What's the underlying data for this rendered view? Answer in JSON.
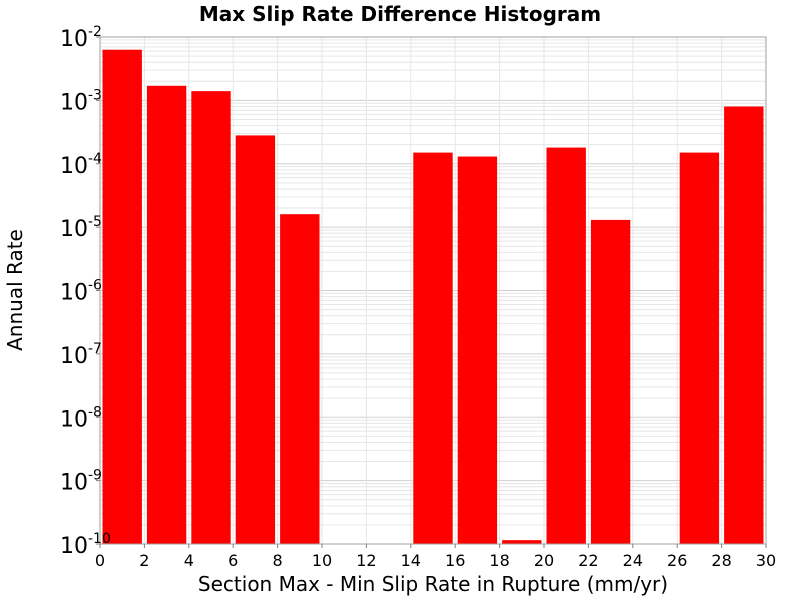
{
  "chart_data": {
    "type": "bar",
    "title": "Max Slip Rate Difference Histogram",
    "xlabel": "Section Max - Min Slip Rate in Rupture (mm/yr)",
    "ylabel": "Annual Rate",
    "xlim": [
      0,
      30
    ],
    "ylim": [
      1e-10,
      0.01
    ],
    "yscale": "log",
    "grid": true,
    "legend": "none",
    "bar_color": "#ff0000",
    "bin_width": 2,
    "x_ticks": [
      "0",
      "2",
      "4",
      "6",
      "8",
      "10",
      "12",
      "14",
      "16",
      "18",
      "20",
      "22",
      "24",
      "26",
      "28",
      "30"
    ],
    "y_ticks": [
      {
        "base": "10",
        "exp": "-2"
      },
      {
        "base": "10",
        "exp": "-3"
      },
      {
        "base": "10",
        "exp": "-4"
      },
      {
        "base": "10",
        "exp": "-5"
      },
      {
        "base": "10",
        "exp": "-6"
      },
      {
        "base": "10",
        "exp": "-7"
      },
      {
        "base": "10",
        "exp": "-8"
      },
      {
        "base": "10",
        "exp": "-9"
      },
      {
        "base": "10",
        "exp": "-10"
      }
    ],
    "bins": [
      {
        "x": 1,
        "value": 0.0063
      },
      {
        "x": 3,
        "value": 0.0017
      },
      {
        "x": 5,
        "value": 0.0014
      },
      {
        "x": 7,
        "value": 0.00028
      },
      {
        "x": 9,
        "value": 1.6e-05
      },
      {
        "x": 11,
        "value": 0
      },
      {
        "x": 13,
        "value": 0
      },
      {
        "x": 15,
        "value": 0.00015
      },
      {
        "x": 17,
        "value": 0.00013
      },
      {
        "x": 19,
        "value": 1.15e-10
      },
      {
        "x": 21,
        "value": 0.00018
      },
      {
        "x": 23,
        "value": 1.3e-05
      },
      {
        "x": 25,
        "value": 0
      },
      {
        "x": 27,
        "value": 0.00015
      },
      {
        "x": 29,
        "value": 0.0008
      }
    ]
  }
}
